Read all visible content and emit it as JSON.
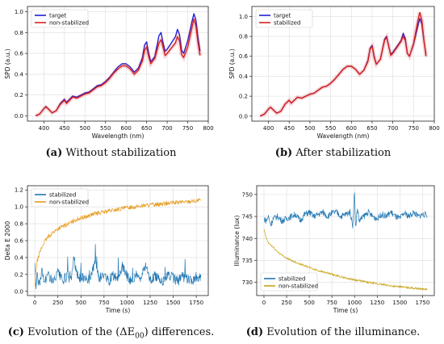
{
  "chart_data": [
    {
      "id": "a",
      "type": "line",
      "caption_letter": "(a)",
      "caption_text": "Without stabilization",
      "xlabel": "Wavelength (nm)",
      "ylabel": "SPD (a.u.)",
      "xlim": [
        360,
        800
      ],
      "ylim": [
        -0.05,
        1.05
      ],
      "xticks": [
        400,
        450,
        500,
        550,
        600,
        650,
        700,
        750,
        800
      ],
      "yticks": [
        0.0,
        0.2,
        0.4,
        0.6,
        0.8,
        1.0
      ],
      "ytick_labels": [
        "0.0",
        "0.2",
        "0.4",
        "0.6",
        "0.8",
        "1.0"
      ],
      "grid": true,
      "legend": "top-left",
      "series": [
        {
          "name": "target",
          "color": "#1f1fd6",
          "x": [
            380,
            390,
            400,
            405,
            410,
            420,
            430,
            440,
            450,
            455,
            460,
            470,
            480,
            490,
            500,
            510,
            520,
            530,
            540,
            550,
            560,
            570,
            580,
            590,
            600,
            610,
            620,
            630,
            640,
            645,
            650,
            655,
            660,
            670,
            680,
            685,
            690,
            695,
            700,
            710,
            720,
            725,
            730,
            735,
            740,
            750,
            760,
            765,
            770,
            775,
            780
          ],
          "y": [
            0.0,
            0.02,
            0.07,
            0.09,
            0.07,
            0.03,
            0.05,
            0.12,
            0.16,
            0.13,
            0.15,
            0.19,
            0.18,
            0.2,
            0.22,
            0.23,
            0.26,
            0.29,
            0.3,
            0.33,
            0.37,
            0.42,
            0.47,
            0.5,
            0.5,
            0.47,
            0.42,
            0.46,
            0.56,
            0.68,
            0.71,
            0.6,
            0.52,
            0.57,
            0.77,
            0.8,
            0.7,
            0.62,
            0.64,
            0.7,
            0.76,
            0.83,
            0.78,
            0.63,
            0.6,
            0.72,
            0.9,
            0.98,
            0.92,
            0.75,
            0.62
          ]
        },
        {
          "name": "non-stabilized",
          "color": "#d62020",
          "x": [
            380,
            390,
            400,
            405,
            410,
            420,
            430,
            440,
            450,
            455,
            460,
            470,
            480,
            490,
            500,
            510,
            520,
            530,
            540,
            550,
            560,
            570,
            580,
            590,
            600,
            610,
            620,
            630,
            640,
            645,
            650,
            655,
            660,
            670,
            680,
            685,
            690,
            695,
            700,
            710,
            720,
            725,
            730,
            735,
            740,
            750,
            760,
            765,
            770,
            775,
            780
          ],
          "y": [
            0.0,
            0.02,
            0.07,
            0.085,
            0.07,
            0.03,
            0.05,
            0.11,
            0.15,
            0.12,
            0.14,
            0.18,
            0.17,
            0.19,
            0.21,
            0.22,
            0.25,
            0.28,
            0.29,
            0.32,
            0.36,
            0.41,
            0.45,
            0.48,
            0.48,
            0.45,
            0.4,
            0.44,
            0.53,
            0.63,
            0.66,
            0.57,
            0.5,
            0.55,
            0.7,
            0.73,
            0.66,
            0.58,
            0.6,
            0.65,
            0.7,
            0.76,
            0.72,
            0.59,
            0.56,
            0.66,
            0.84,
            0.93,
            0.86,
            0.7,
            0.58
          ]
        }
      ]
    },
    {
      "id": "b",
      "type": "line",
      "caption_letter": "(b)",
      "caption_text": "After stabilization",
      "xlabel": "Wavelength (nm)",
      "ylabel": "SPD (a.u.)",
      "xlim": [
        360,
        800
      ],
      "ylim": [
        -0.05,
        1.1
      ],
      "xticks": [
        400,
        450,
        500,
        550,
        600,
        650,
        700,
        750,
        800
      ],
      "yticks": [
        0.0,
        0.2,
        0.4,
        0.6,
        0.8,
        1.0
      ],
      "ytick_labels": [
        "0.0",
        "0.2",
        "0.4",
        "0.6",
        "0.8",
        "1.0"
      ],
      "grid": true,
      "legend": "top-left",
      "series": [
        {
          "name": "target",
          "color": "#1f1fd6",
          "x": [
            380,
            390,
            400,
            405,
            410,
            420,
            430,
            440,
            450,
            455,
            460,
            470,
            480,
            490,
            500,
            510,
            520,
            530,
            540,
            550,
            560,
            570,
            580,
            590,
            600,
            610,
            620,
            630,
            640,
            645,
            650,
            655,
            660,
            670,
            680,
            685,
            690,
            695,
            700,
            710,
            720,
            725,
            730,
            735,
            740,
            750,
            760,
            765,
            770,
            775,
            780
          ],
          "y": [
            0.0,
            0.02,
            0.07,
            0.09,
            0.07,
            0.03,
            0.05,
            0.12,
            0.16,
            0.13,
            0.15,
            0.19,
            0.18,
            0.2,
            0.22,
            0.23,
            0.26,
            0.29,
            0.3,
            0.33,
            0.37,
            0.42,
            0.47,
            0.5,
            0.5,
            0.47,
            0.42,
            0.46,
            0.56,
            0.68,
            0.71,
            0.6,
            0.52,
            0.57,
            0.77,
            0.8,
            0.7,
            0.62,
            0.64,
            0.7,
            0.76,
            0.83,
            0.78,
            0.63,
            0.6,
            0.72,
            0.9,
            0.98,
            0.92,
            0.75,
            0.62
          ]
        },
        {
          "name": "stabilized",
          "color": "#d62020",
          "x": [
            380,
            390,
            400,
            405,
            410,
            420,
            430,
            440,
            450,
            455,
            460,
            470,
            480,
            490,
            500,
            510,
            520,
            530,
            540,
            550,
            560,
            570,
            580,
            590,
            600,
            610,
            620,
            630,
            640,
            645,
            650,
            655,
            660,
            670,
            680,
            685,
            690,
            695,
            700,
            710,
            720,
            725,
            730,
            735,
            740,
            750,
            760,
            765,
            770,
            775,
            780
          ],
          "y": [
            0.0,
            0.02,
            0.07,
            0.09,
            0.07,
            0.03,
            0.05,
            0.12,
            0.16,
            0.13,
            0.15,
            0.19,
            0.18,
            0.2,
            0.22,
            0.23,
            0.26,
            0.29,
            0.3,
            0.33,
            0.37,
            0.42,
            0.47,
            0.5,
            0.5,
            0.47,
            0.42,
            0.46,
            0.55,
            0.67,
            0.7,
            0.59,
            0.52,
            0.57,
            0.76,
            0.79,
            0.7,
            0.61,
            0.63,
            0.69,
            0.75,
            0.8,
            0.76,
            0.63,
            0.6,
            0.73,
            0.95,
            1.04,
            0.96,
            0.76,
            0.6
          ]
        }
      ]
    },
    {
      "id": "c",
      "type": "line",
      "caption_letter": "(c)",
      "caption_text": "Evolution of the (ΔE",
      "caption_sub": "00",
      "caption_tail": ") differences.",
      "xlabel": "Time (s)",
      "ylabel": "Delta E 2000",
      "xlim": [
        -80,
        1880
      ],
      "ylim": [
        -0.05,
        1.25
      ],
      "xticks": [
        0,
        250,
        500,
        750,
        1000,
        1250,
        1500,
        1750
      ],
      "yticks": [
        0.0,
        0.2,
        0.4,
        0.6,
        0.8,
        1.0,
        1.2
      ],
      "ytick_labels": [
        "0.0",
        "0.2",
        "0.4",
        "0.6",
        "0.8",
        "1.0",
        "1.2"
      ],
      "grid": true,
      "legend": "top-left",
      "series": [
        {
          "name": "stabilized",
          "color": "#1f77b4",
          "x": [
            0,
            10,
            25,
            50,
            75,
            100,
            150,
            200,
            250,
            300,
            350,
            400,
            420,
            450,
            500,
            550,
            600,
            650,
            700,
            750,
            800,
            850,
            900,
            950,
            1000,
            1050,
            1100,
            1150,
            1200,
            1250,
            1300,
            1350,
            1400,
            1450,
            1500,
            1550,
            1600,
            1650,
            1700,
            1750,
            1800
          ],
          "y": [
            0.35,
            0.05,
            0.18,
            0.08,
            0.25,
            0.12,
            0.2,
            0.1,
            0.22,
            0.12,
            0.18,
            0.15,
            0.45,
            0.2,
            0.15,
            0.18,
            0.12,
            0.35,
            0.15,
            0.2,
            0.12,
            0.18,
            0.15,
            0.3,
            0.18,
            0.12,
            0.2,
            0.15,
            0.32,
            0.12,
            0.18,
            0.15,
            0.12,
            0.2,
            0.16,
            0.12,
            0.18,
            0.15,
            0.12,
            0.18,
            0.14
          ]
        },
        {
          "name": "non-stabilized",
          "color": "#e69b1b",
          "x": [
            0,
            10,
            25,
            50,
            75,
            100,
            150,
            200,
            250,
            300,
            350,
            400,
            450,
            500,
            550,
            600,
            650,
            700,
            750,
            800,
            850,
            900,
            950,
            1000,
            1050,
            1100,
            1150,
            1200,
            1250,
            1300,
            1350,
            1400,
            1450,
            1500,
            1550,
            1600,
            1650,
            1700,
            1750,
            1800
          ],
          "y": [
            0.05,
            0.25,
            0.35,
            0.45,
            0.52,
            0.58,
            0.65,
            0.7,
            0.74,
            0.77,
            0.79,
            0.82,
            0.85,
            0.87,
            0.88,
            0.9,
            0.92,
            0.93,
            0.94,
            0.95,
            0.96,
            0.97,
            0.98,
            0.99,
            1.0,
            1.0,
            1.01,
            1.02,
            1.02,
            1.03,
            1.03,
            1.04,
            1.04,
            1.05,
            1.05,
            1.06,
            1.06,
            1.07,
            1.07,
            1.08
          ]
        }
      ]
    },
    {
      "id": "d",
      "type": "line",
      "caption_letter": "(d)",
      "caption_text": "Evolution of the illuminance.",
      "xlabel": "Time (s)",
      "ylabel": "Illuminance (lux)",
      "xlim": [
        -80,
        1880
      ],
      "ylim": [
        727,
        752
      ],
      "xticks": [
        0,
        250,
        500,
        750,
        1000,
        1250,
        1500,
        1750
      ],
      "yticks": [
        730,
        735,
        740,
        745,
        750
      ],
      "ytick_labels": [
        "730",
        "735",
        "740",
        "745",
        "750"
      ],
      "grid": true,
      "legend": "bottom-left",
      "series": [
        {
          "name": "stabilized",
          "color": "#1f77b4",
          "x": [
            0,
            25,
            50,
            75,
            100,
            150,
            200,
            250,
            300,
            350,
            400,
            450,
            500,
            550,
            600,
            650,
            700,
            750,
            800,
            850,
            900,
            950,
            980,
            1000,
            1010,
            1030,
            1050,
            1100,
            1150,
            1200,
            1250,
            1300,
            1350,
            1400,
            1450,
            1500,
            1550,
            1600,
            1650,
            1700,
            1750,
            1800
          ],
          "y": [
            744.5,
            744,
            745,
            743,
            744.5,
            745,
            744,
            744.5,
            745,
            745.5,
            744,
            745.5,
            746,
            745,
            745.5,
            746,
            745,
            745.8,
            746,
            745,
            745.5,
            746,
            743,
            751,
            742,
            747,
            744,
            745,
            746,
            745,
            744.5,
            745.5,
            745,
            746,
            745,
            744.5,
            745.8,
            745,
            746,
            745,
            745.5,
            745.3
          ]
        },
        {
          "name": "non-stabilized",
          "color": "#c9a317",
          "x": [
            0,
            25,
            50,
            100,
            150,
            200,
            250,
            300,
            350,
            400,
            450,
            500,
            550,
            600,
            650,
            700,
            750,
            800,
            850,
            900,
            950,
            1000,
            1050,
            1100,
            1150,
            1200,
            1250,
            1300,
            1350,
            1400,
            1450,
            1500,
            1550,
            1600,
            1650,
            1700,
            1750,
            1800
          ],
          "y": [
            742,
            740,
            739,
            738,
            737,
            736.2,
            735.5,
            735,
            734.6,
            734.2,
            733.8,
            733.4,
            733,
            732.7,
            732.4,
            732.1,
            731.8,
            731.5,
            731.3,
            731,
            730.8,
            730.6,
            730.4,
            730.2,
            730,
            729.8,
            729.7,
            729.5,
            729.4,
            729.2,
            729.1,
            729,
            728.9,
            728.8,
            728.7,
            728.6,
            728.5,
            728.4
          ]
        }
      ]
    }
  ]
}
